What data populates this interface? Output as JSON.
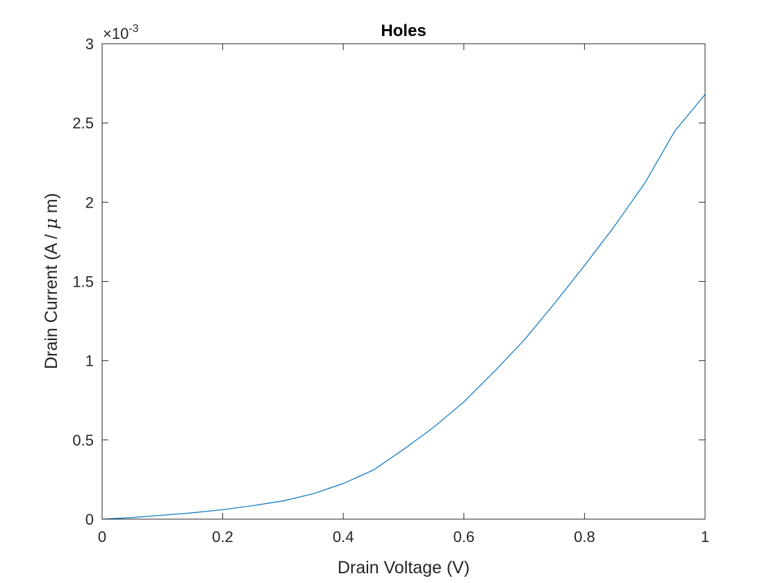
{
  "chart_data": {
    "type": "line",
    "title": "Holes",
    "xlabel": "Drain Voltage (V)",
    "ylabel": {
      "prefix": "Drain Current (A / ",
      "mu": "μ",
      "suffix": " m)"
    },
    "y_exponent": {
      "base": "×10",
      "power": "-3"
    },
    "xlim": [
      0,
      1
    ],
    "ylim": [
      0,
      3
    ],
    "x_ticks": [
      "0",
      "0.2",
      "0.4",
      "0.6",
      "0.8",
      "1"
    ],
    "y_ticks": [
      "0",
      "0.5",
      "1",
      "1.5",
      "2",
      "2.5",
      "3"
    ],
    "grid": false,
    "legend": "none",
    "series": [
      {
        "color": "#0072BD",
        "x": [
          0,
          0.05,
          0.1,
          0.15,
          0.2,
          0.25,
          0.3,
          0.35,
          0.4,
          0.45,
          0.5,
          0.55,
          0.6,
          0.65,
          0.7,
          0.75,
          0.8,
          0.85,
          0.9,
          0.95,
          1.0
        ],
        "y": [
          0,
          0.01,
          0.025,
          0.04,
          0.06,
          0.085,
          0.115,
          0.16,
          0.225,
          0.31,
          0.44,
          0.58,
          0.74,
          0.93,
          1.13,
          1.36,
          1.6,
          1.85,
          2.12,
          2.45,
          2.68
        ]
      }
    ]
  }
}
